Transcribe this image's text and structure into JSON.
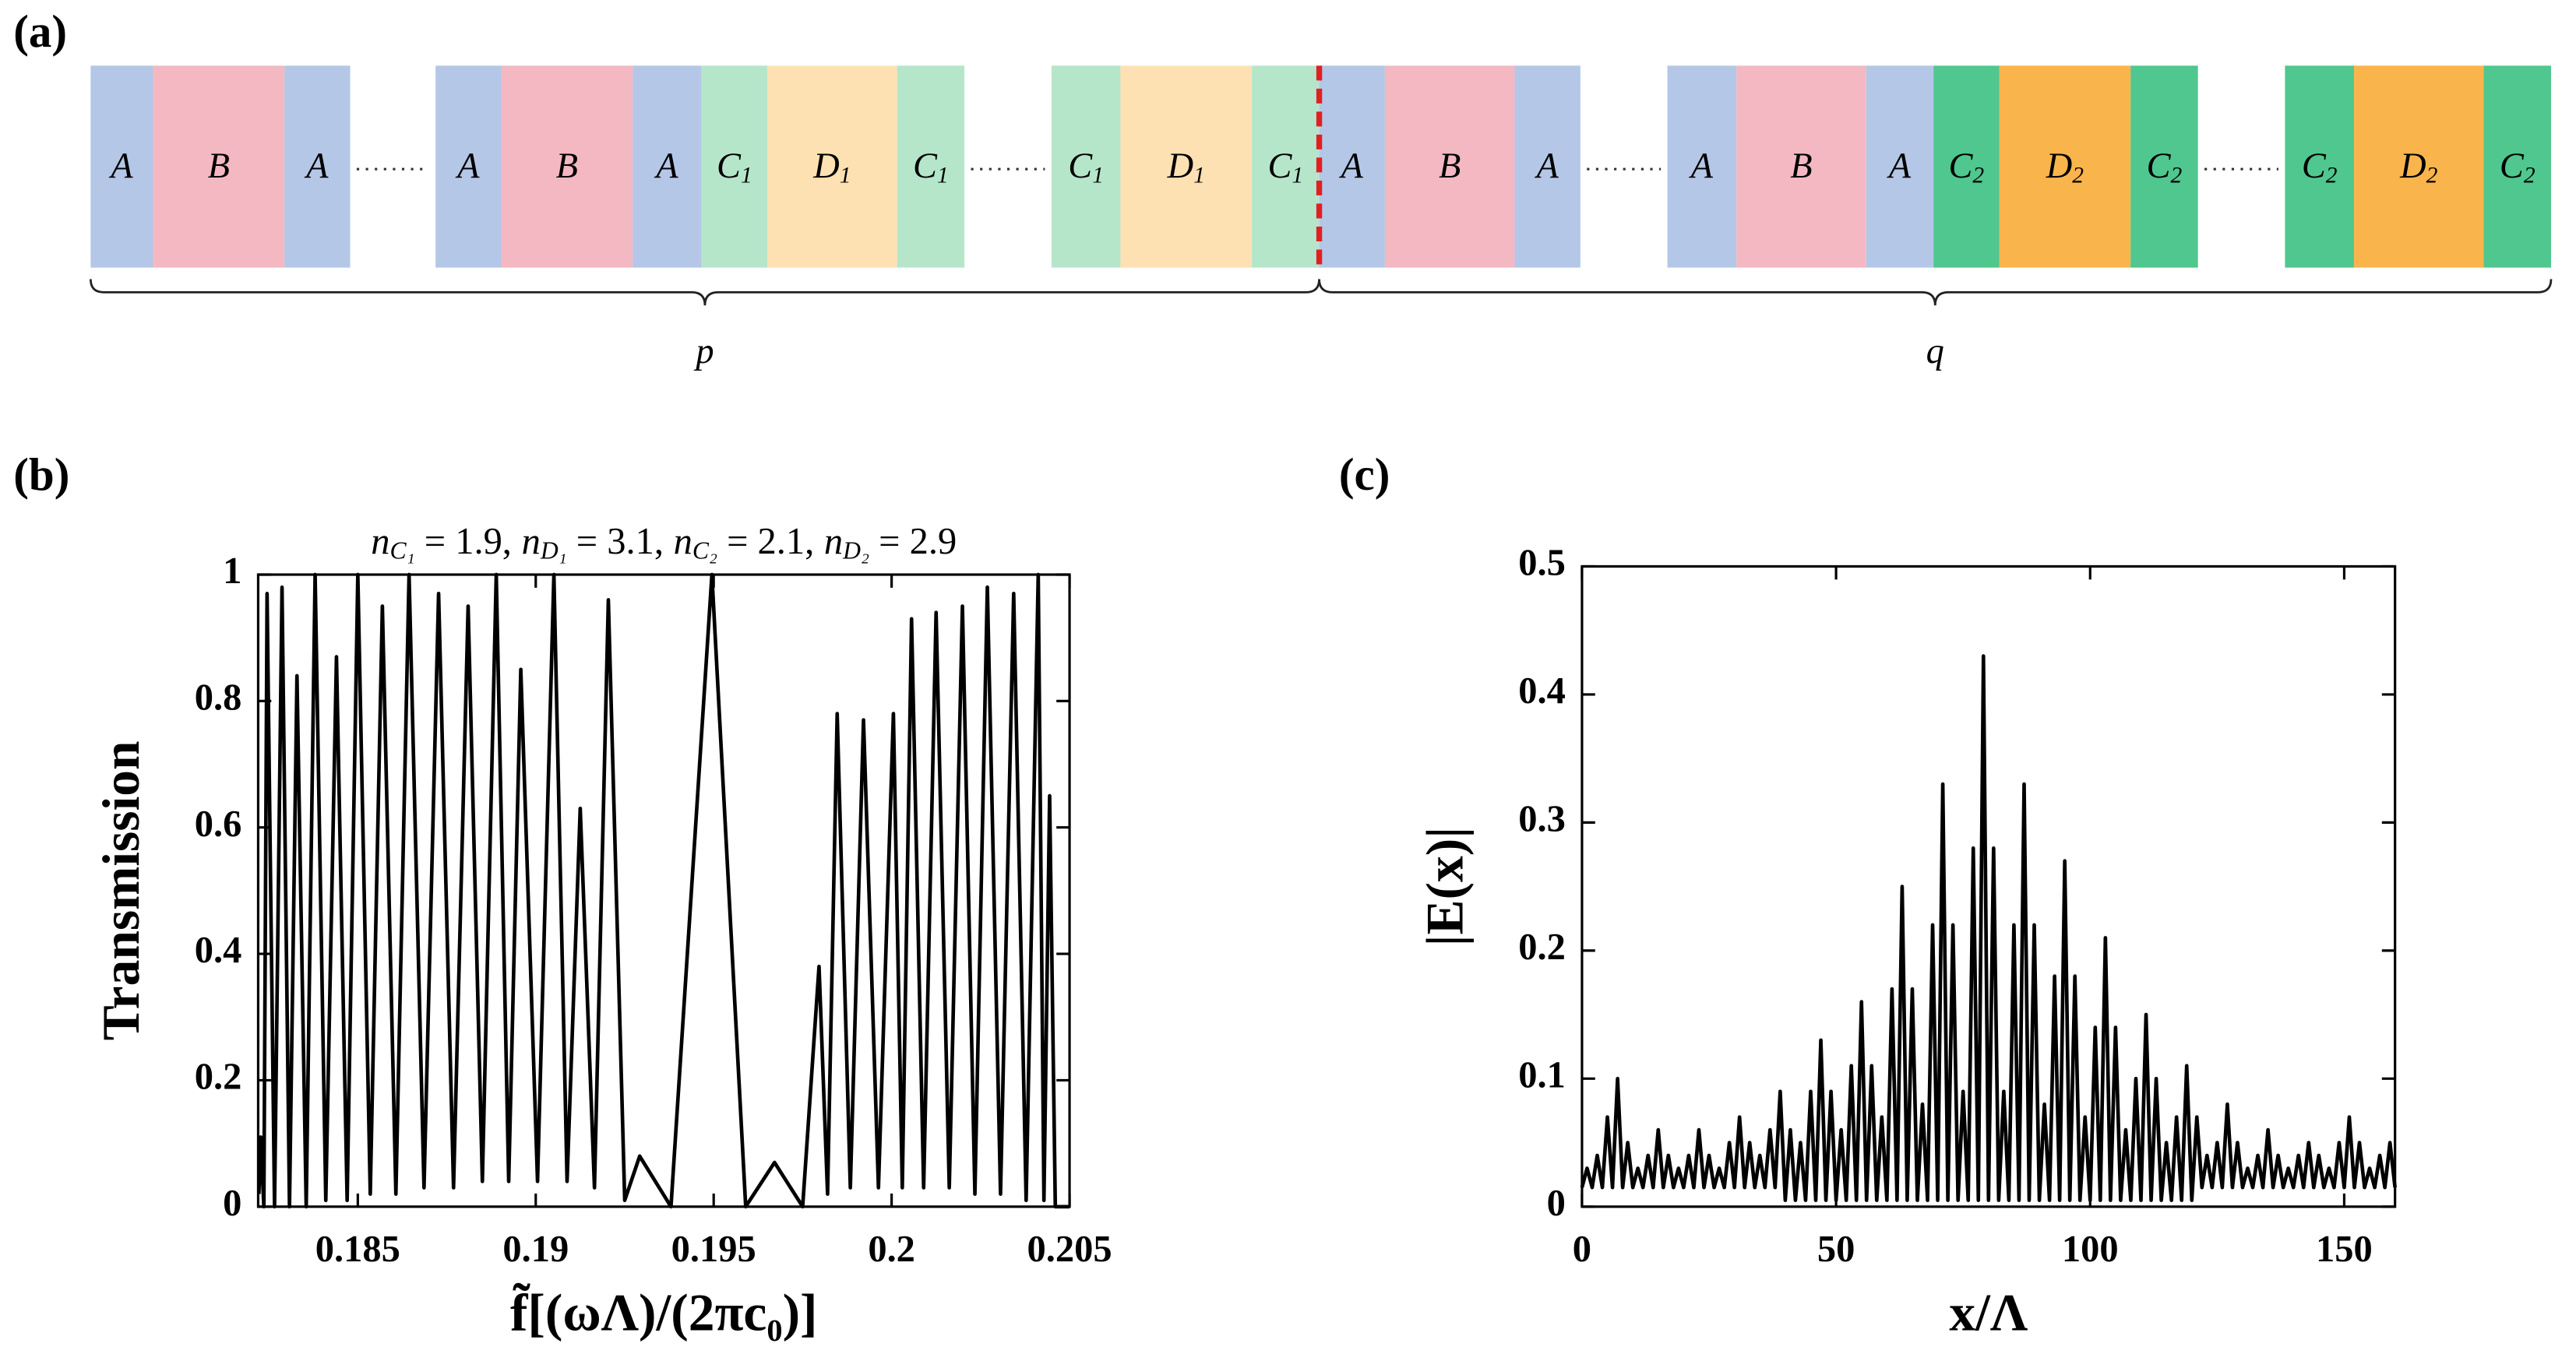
{
  "diagram": {
    "label": "(a)",
    "groups": [
      [
        {
          "name": "A",
          "color": "#b4c7e7"
        },
        {
          "name": "B",
          "color": "#f4b8c2"
        },
        {
          "name": "A",
          "color": "#b4c7e7"
        }
      ],
      [
        {
          "name": "A",
          "color": "#b4c7e7"
        },
        {
          "name": "B",
          "color": "#f4b8c2"
        },
        {
          "name": "A",
          "color": "#b4c7e7"
        },
        {
          "name": "C",
          "sub": "1",
          "color": "#b6e6ca"
        },
        {
          "name": "D",
          "sub": "1",
          "color": "#fde1b3"
        },
        {
          "name": "C",
          "sub": "1",
          "color": "#b6e6ca"
        }
      ],
      [
        {
          "name": "C",
          "sub": "1",
          "color": "#b6e6ca"
        },
        {
          "name": "D",
          "sub": "1",
          "color": "#fde1b3"
        },
        {
          "name": "C",
          "sub": "1",
          "color": "#b6e6ca"
        }
      ],
      [
        {
          "name": "A",
          "color": "#b4c7e7"
        },
        {
          "name": "B",
          "color": "#f4b8c2"
        },
        {
          "name": "A",
          "color": "#b4c7e7"
        }
      ],
      [
        {
          "name": "A",
          "color": "#b4c7e7"
        },
        {
          "name": "B",
          "color": "#f4b8c2"
        },
        {
          "name": "A",
          "color": "#b4c7e7"
        },
        {
          "name": "C",
          "sub": "2",
          "color": "#4fc78e"
        },
        {
          "name": "D",
          "sub": "2",
          "color": "#f9b54c"
        },
        {
          "name": "C",
          "sub": "2",
          "color": "#4fc78e"
        }
      ],
      [
        {
          "name": "C",
          "sub": "2",
          "color": "#4fc78e"
        },
        {
          "name": "D",
          "sub": "2",
          "color": "#f9b54c"
        },
        {
          "name": "C",
          "sub": "2",
          "color": "#4fc78e"
        }
      ]
    ],
    "braces": [
      {
        "label": "p"
      },
      {
        "label": "q"
      }
    ]
  },
  "chart_data": [
    {
      "type": "line",
      "panel": "(b)",
      "title": [
        {
          "n": "n",
          "sub": "C₁",
          "eq": " = 1.9,"
        },
        {
          "n": "n",
          "sub": "D₁",
          "eq": " = 3.1,"
        },
        {
          "n": "n",
          "sub": "C₂",
          "eq": " = 2.1,"
        },
        {
          "n": "n",
          "sub": "D₂",
          "eq": " = 2.9"
        }
      ],
      "xlabel": "f̃[(ωΛ)/(2πc₀)]",
      "ylabel": "Transmission",
      "color": "#000000",
      "xlim": [
        0.1822,
        0.205
      ],
      "xticks": [
        0.185,
        0.19,
        0.195,
        0.2,
        0.205
      ],
      "ylim": [
        0,
        1
      ],
      "yticks": [
        0,
        0.2,
        0.4,
        0.6,
        0.8,
        1
      ],
      "x": [
        0.18222,
        0.18227,
        0.18236,
        0.18245,
        0.18266,
        0.18287,
        0.18308,
        0.18329,
        0.18355,
        0.1838,
        0.1841,
        0.1844,
        0.1847,
        0.185,
        0.18535,
        0.18569,
        0.18607,
        0.18644,
        0.18686,
        0.18727,
        0.18769,
        0.1881,
        0.1885,
        0.18889,
        0.18924,
        0.18958,
        0.19005,
        0.19051,
        0.19088,
        0.19125,
        0.19165,
        0.19204,
        0.1925,
        0.19292,
        0.1938,
        0.19495,
        0.1959,
        0.19671,
        0.1975,
        0.19796,
        0.1982,
        0.19847,
        0.19884,
        0.19921,
        0.19963,
        0.20005,
        0.2003,
        0.20056,
        0.2009,
        0.20125,
        0.20162,
        0.20199,
        0.20234,
        0.20269,
        0.20306,
        0.20343,
        0.20378,
        0.20412,
        0.20428,
        0.20444,
        0.2046,
        0.205
      ],
      "values": [
        0.02,
        0.11,
        0.0,
        0.97,
        0.0,
        0.98,
        0.0,
        0.84,
        0.0,
        1.0,
        0.01,
        0.87,
        0.01,
        1.0,
        0.02,
        0.95,
        0.02,
        1.0,
        0.03,
        0.97,
        0.03,
        0.95,
        0.04,
        1.0,
        0.04,
        0.85,
        0.04,
        1.0,
        0.04,
        0.63,
        0.03,
        0.96,
        0.01,
        0.08,
        0.0,
        1.0,
        0.0,
        0.07,
        0.0,
        0.38,
        0.02,
        0.78,
        0.03,
        0.77,
        0.03,
        0.78,
        0.03,
        0.93,
        0.03,
        0.94,
        0.03,
        0.95,
        0.02,
        0.98,
        0.02,
        0.97,
        0.01,
        1.0,
        0.01,
        0.65,
        0.0,
        0.0
      ]
    },
    {
      "type": "line",
      "panel": "(c)",
      "xlabel": "x/Λ",
      "ylabel": "|E(x)|",
      "color": "#000000",
      "xlim": [
        0,
        160
      ],
      "xticks": [
        0,
        50,
        100,
        150
      ],
      "ylim": [
        0,
        0.5
      ],
      "yticks": [
        0,
        0.1,
        0.2,
        0.3,
        0.4,
        0.5
      ],
      "x": [
        0,
        1,
        2,
        3,
        4,
        5,
        6,
        7,
        8,
        9,
        10,
        11,
        12,
        13,
        14,
        15,
        16,
        17,
        18,
        19,
        20,
        21,
        22,
        23,
        24,
        25,
        26,
        27,
        28,
        29,
        30,
        31,
        32,
        33,
        34,
        35,
        36,
        37,
        38,
        39,
        40,
        41,
        42,
        43,
        44,
        45,
        46,
        47,
        48,
        49,
        50,
        51,
        52,
        53,
        54,
        55,
        56,
        57,
        58,
        59,
        60,
        61,
        62,
        63,
        64,
        65,
        66,
        67,
        68,
        69,
        70,
        71,
        72,
        73,
        74,
        75,
        76,
        77,
        78,
        79,
        80,
        81,
        82,
        83,
        84,
        85,
        86,
        87,
        88,
        89,
        90,
        91,
        92,
        93,
        94,
        95,
        96,
        97,
        98,
        99,
        100,
        101,
        102,
        103,
        104,
        105,
        106,
        107,
        108,
        109,
        110,
        111,
        112,
        113,
        114,
        115,
        116,
        117,
        118,
        119,
        120,
        121,
        122,
        123,
        124,
        125,
        126,
        127,
        128,
        129,
        130,
        131,
        132,
        133,
        134,
        135,
        136,
        137,
        138,
        139,
        140,
        141,
        142,
        143,
        144,
        145,
        146,
        147,
        148,
        149,
        150,
        151,
        152,
        153,
        154,
        155,
        156,
        157,
        158,
        159,
        160
      ],
      "values": [
        0.015,
        0.03,
        0.015,
        0.04,
        0.015,
        0.07,
        0.015,
        0.1,
        0.015,
        0.05,
        0.015,
        0.03,
        0.015,
        0.04,
        0.015,
        0.06,
        0.015,
        0.04,
        0.015,
        0.03,
        0.015,
        0.04,
        0.015,
        0.06,
        0.015,
        0.04,
        0.015,
        0.03,
        0.015,
        0.05,
        0.015,
        0.07,
        0.015,
        0.05,
        0.015,
        0.04,
        0.015,
        0.06,
        0.015,
        0.09,
        0.005,
        0.06,
        0.005,
        0.05,
        0.005,
        0.09,
        0.005,
        0.13,
        0.005,
        0.09,
        0.005,
        0.06,
        0.005,
        0.11,
        0.005,
        0.16,
        0.005,
        0.11,
        0.005,
        0.07,
        0.005,
        0.17,
        0.005,
        0.25,
        0.005,
        0.17,
        0.005,
        0.08,
        0.005,
        0.22,
        0.005,
        0.33,
        0.005,
        0.22,
        0.005,
        0.09,
        0.005,
        0.28,
        0.005,
        0.43,
        0.005,
        0.28,
        0.005,
        0.09,
        0.005,
        0.22,
        0.005,
        0.33,
        0.005,
        0.22,
        0.005,
        0.08,
        0.005,
        0.18,
        0.005,
        0.27,
        0.005,
        0.18,
        0.005,
        0.07,
        0.005,
        0.14,
        0.005,
        0.21,
        0.005,
        0.14,
        0.005,
        0.06,
        0.005,
        0.1,
        0.005,
        0.15,
        0.005,
        0.1,
        0.005,
        0.05,
        0.005,
        0.07,
        0.005,
        0.11,
        0.005,
        0.07,
        0.015,
        0.04,
        0.015,
        0.05,
        0.015,
        0.08,
        0.015,
        0.05,
        0.015,
        0.03,
        0.015,
        0.04,
        0.015,
        0.06,
        0.015,
        0.04,
        0.015,
        0.03,
        0.015,
        0.04,
        0.015,
        0.05,
        0.015,
        0.04,
        0.015,
        0.03,
        0.015,
        0.05,
        0.015,
        0.07,
        0.015,
        0.05,
        0.015,
        0.03,
        0.015,
        0.04,
        0.015,
        0.05,
        0.015
      ]
    }
  ]
}
